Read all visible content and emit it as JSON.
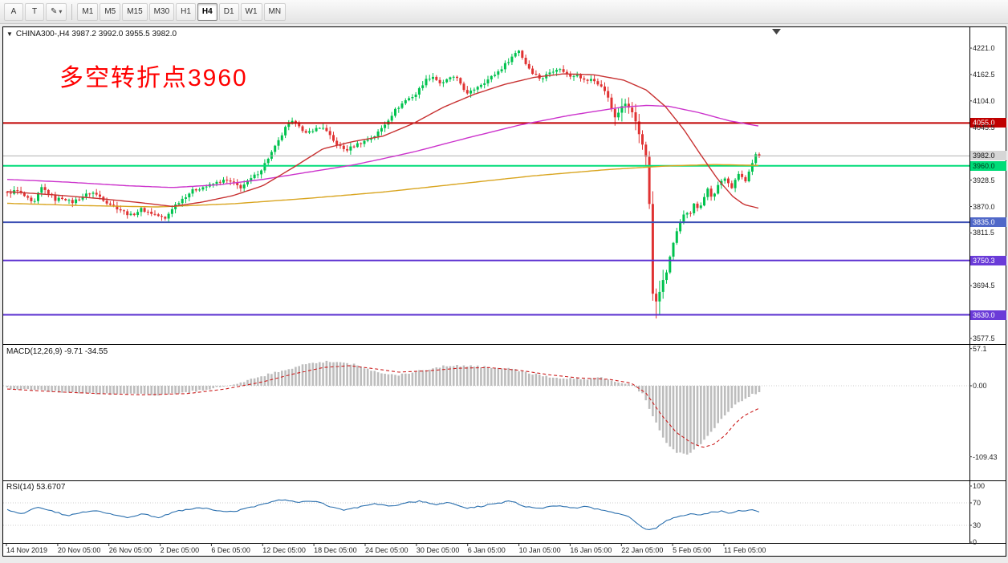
{
  "toolbar": {
    "tool_buttons": [
      {
        "label": "A",
        "name": "cursor-tool-button",
        "dropdown": false
      },
      {
        "label": "T",
        "name": "text-tool-button",
        "dropdown": false
      },
      {
        "label": "✎",
        "name": "drawing-tool-button",
        "dropdown": true
      }
    ],
    "timeframes": [
      {
        "label": "M1",
        "active": false
      },
      {
        "label": "M5",
        "active": false
      },
      {
        "label": "M15",
        "active": false
      },
      {
        "label": "M30",
        "active": false
      },
      {
        "label": "H1",
        "active": false
      },
      {
        "label": "H4",
        "active": true
      },
      {
        "label": "D1",
        "active": false
      },
      {
        "label": "W1",
        "active": false
      },
      {
        "label": "MN",
        "active": false
      }
    ]
  },
  "chart": {
    "symbol_info": "CHINA300-,H4 3987.2 3992.0 3955.5 3982.0",
    "annotation": {
      "text": "多空转折点3960",
      "color": "#ff0000"
    },
    "y_axis_labels": [
      "4221.0",
      "4162.5",
      "4104.0",
      "4045.5",
      "3928.5",
      "3870.0",
      "3811.5",
      "3694.5",
      "3577.5"
    ],
    "price_tags": [
      {
        "text": "4055.0",
        "price": 4055.0,
        "bg": "#c00000",
        "fg": "#ffffff",
        "line": "#c00000",
        "width": 2
      },
      {
        "text": "3982.0",
        "price": 3982.0,
        "bg": "#d6d6d6",
        "fg": "#111111",
        "line": "#b0b0b0",
        "width": 1
      },
      {
        "text": "3960.0",
        "price": 3960.0,
        "bg": "#00dc78",
        "fg": "#00341a",
        "line": "#00dc78",
        "width": 2
      },
      {
        "text": "3835.0",
        "price": 3835.0,
        "bg": "#5068c8",
        "fg": "#ffffff",
        "line": "#3c50b4",
        "width": 2
      },
      {
        "text": "3750.3",
        "price": 3750.3,
        "bg": "#6a3bd8",
        "fg": "#ffffff",
        "line": "#5a2fd0",
        "width": 2
      },
      {
        "text": "3630.0",
        "price": 3630.0,
        "bg": "#6a3bd8",
        "fg": "#ffffff",
        "line": "#5a2fd0",
        "width": 2
      }
    ]
  },
  "macd": {
    "label": "MACD(12,26,9) -9.71 -34.55",
    "axis_labels": [
      {
        "text": "57.1",
        "value": 57.1
      },
      {
        "text": "0.00",
        "value": 0
      },
      {
        "text": "-109.43",
        "value": -109.43
      }
    ]
  },
  "rsi": {
    "label": "RSI(14) 53.6707",
    "axis_labels": [
      {
        "text": "100",
        "value": 100
      },
      {
        "text": "70",
        "value": 70
      },
      {
        "text": "30",
        "value": 30
      },
      {
        "text": "0",
        "value": 0
      }
    ],
    "levels": [
      70,
      30
    ]
  },
  "time_axis": [
    "14 Nov 2019",
    "20 Nov 05:00",
    "26 Nov 05:00",
    "2 Dec 05:00",
    "6 Dec 05:00",
    "12 Dec 05:00",
    "18 Dec 05:00",
    "24 Dec 05:00",
    "30 Dec 05:00",
    "6 Jan 05:00",
    "10 Jan 05:00",
    "16 Jan 05:00",
    "22 Jan 05:00",
    "5 Feb 05:00",
    "11 Feb 05:00"
  ],
  "chart_data": {
    "type": "candlestick",
    "symbol": "CHINA300-",
    "timeframe": "H4",
    "current_bar": {
      "open": 3987.2,
      "high": 3992.0,
      "low": 3955.5,
      "close": 3982.0
    },
    "y_range": [
      3577.5,
      4221.0
    ],
    "macd_range": [
      -109.43,
      57.1
    ],
    "macd_current": {
      "main": -9.71,
      "signal": -34.55
    },
    "rsi_range": [
      0,
      100
    ],
    "rsi_current": 53.6707,
    "horizontal_levels": [
      4055.0,
      3982.0,
      3960.0,
      3835.0,
      3750.3,
      3630.0
    ],
    "num_bars": 220,
    "colors": {
      "up": "#00c24e",
      "down": "#e03232",
      "ma_fast": "#c83232",
      "ma_mid": "#cc33cc",
      "ma_slow": "#d9a520",
      "macd_hist": "#bdbdbd",
      "macd_signal": "#cc2020",
      "rsi": "#2a6fae"
    },
    "note": "t is normalized chart position 0-1 (14 Nov 2019 to mid Feb 2020); values estimated from pixels",
    "close_path": [
      [
        0.0,
        3898
      ],
      [
        0.012,
        3906
      ],
      [
        0.025,
        3890
      ],
      [
        0.035,
        3874
      ],
      [
        0.045,
        3912
      ],
      [
        0.058,
        3896
      ],
      [
        0.064,
        3885
      ],
      [
        0.075,
        3890
      ],
      [
        0.085,
        3878
      ],
      [
        0.1,
        3892
      ],
      [
        0.112,
        3902
      ],
      [
        0.125,
        3890
      ],
      [
        0.132,
        3880
      ],
      [
        0.145,
        3868
      ],
      [
        0.155,
        3858
      ],
      [
        0.165,
        3850
      ],
      [
        0.178,
        3864
      ],
      [
        0.19,
        3856
      ],
      [
        0.2,
        3850
      ],
      [
        0.21,
        3842
      ],
      [
        0.22,
        3868
      ],
      [
        0.232,
        3886
      ],
      [
        0.245,
        3904
      ],
      [
        0.258,
        3912
      ],
      [
        0.268,
        3916
      ],
      [
        0.28,
        3924
      ],
      [
        0.29,
        3928
      ],
      [
        0.3,
        3922
      ],
      [
        0.31,
        3912
      ],
      [
        0.322,
        3928
      ],
      [
        0.337,
        3950
      ],
      [
        0.348,
        3980
      ],
      [
        0.36,
        4012
      ],
      [
        0.37,
        4044
      ],
      [
        0.378,
        4056
      ],
      [
        0.386,
        4058
      ],
      [
        0.395,
        4028
      ],
      [
        0.406,
        4040
      ],
      [
        0.42,
        4046
      ],
      [
        0.435,
        4012
      ],
      [
        0.45,
        3994
      ],
      [
        0.465,
        4008
      ],
      [
        0.474,
        4014
      ],
      [
        0.49,
        4028
      ],
      [
        0.502,
        4052
      ],
      [
        0.515,
        4082
      ],
      [
        0.53,
        4106
      ],
      [
        0.543,
        4118
      ],
      [
        0.555,
        4148
      ],
      [
        0.565,
        4160
      ],
      [
        0.578,
        4140
      ],
      [
        0.59,
        4158
      ],
      [
        0.6,
        4150
      ],
      [
        0.612,
        4118
      ],
      [
        0.625,
        4136
      ],
      [
        0.64,
        4152
      ],
      [
        0.655,
        4172
      ],
      [
        0.668,
        4196
      ],
      [
        0.68,
        4218
      ],
      [
        0.688,
        4190
      ],
      [
        0.698,
        4168
      ],
      [
        0.71,
        4152
      ],
      [
        0.72,
        4166
      ],
      [
        0.73,
        4176
      ],
      [
        0.74,
        4170
      ],
      [
        0.748,
        4158
      ],
      [
        0.758,
        4164
      ],
      [
        0.768,
        4148
      ],
      [
        0.778,
        4152
      ],
      [
        0.79,
        4136
      ],
      [
        0.8,
        4110
      ],
      [
        0.808,
        4064
      ],
      [
        0.815,
        4086
      ],
      [
        0.822,
        4098
      ],
      [
        0.83,
        4088
      ],
      [
        0.838,
        4044
      ],
      [
        0.846,
        3998
      ],
      [
        0.852,
        3966
      ],
      [
        0.858,
        3680
      ],
      [
        0.864,
        3652
      ],
      [
        0.87,
        3700
      ],
      [
        0.876,
        3718
      ],
      [
        0.882,
        3762
      ],
      [
        0.888,
        3800
      ],
      [
        0.895,
        3836
      ],
      [
        0.902,
        3862
      ],
      [
        0.908,
        3850
      ],
      [
        0.914,
        3880
      ],
      [
        0.92,
        3858
      ],
      [
        0.926,
        3890
      ],
      [
        0.932,
        3908
      ],
      [
        0.938,
        3886
      ],
      [
        0.944,
        3914
      ],
      [
        0.95,
        3924
      ],
      [
        0.956,
        3932
      ],
      [
        0.962,
        3906
      ],
      [
        0.968,
        3932
      ],
      [
        0.974,
        3948
      ],
      [
        0.98,
        3920
      ],
      [
        0.985,
        3945
      ],
      [
        0.99,
        3962
      ],
      [
        0.995,
        3986
      ],
      [
        1.0,
        3982
      ]
    ],
    "ma_fast_path": [
      [
        0.0,
        3903
      ],
      [
        0.06,
        3896
      ],
      [
        0.12,
        3888
      ],
      [
        0.18,
        3878
      ],
      [
        0.22,
        3870
      ],
      [
        0.26,
        3880
      ],
      [
        0.3,
        3894
      ],
      [
        0.34,
        3916
      ],
      [
        0.38,
        3956
      ],
      [
        0.42,
        3998
      ],
      [
        0.46,
        4014
      ],
      [
        0.5,
        4026
      ],
      [
        0.54,
        4054
      ],
      [
        0.58,
        4090
      ],
      [
        0.62,
        4118
      ],
      [
        0.66,
        4140
      ],
      [
        0.7,
        4156
      ],
      [
        0.74,
        4164
      ],
      [
        0.78,
        4162
      ],
      [
        0.82,
        4150
      ],
      [
        0.85,
        4128
      ],
      [
        0.875,
        4092
      ],
      [
        0.9,
        4040
      ],
      [
        0.92,
        3990
      ],
      [
        0.945,
        3930
      ],
      [
        0.965,
        3892
      ],
      [
        0.98,
        3874
      ],
      [
        1.0,
        3866
      ]
    ],
    "ma_mid_path": [
      [
        0.0,
        3930
      ],
      [
        0.08,
        3924
      ],
      [
        0.16,
        3916
      ],
      [
        0.22,
        3912
      ],
      [
        0.28,
        3918
      ],
      [
        0.34,
        3930
      ],
      [
        0.4,
        3946
      ],
      [
        0.46,
        3962
      ],
      [
        0.5,
        3976
      ],
      [
        0.543,
        3992
      ],
      [
        0.612,
        4022
      ],
      [
        0.68,
        4050
      ],
      [
        0.748,
        4072
      ],
      [
        0.817,
        4090
      ],
      [
        0.85,
        4094
      ],
      [
        0.88,
        4092
      ],
      [
        0.92,
        4078
      ],
      [
        0.96,
        4060
      ],
      [
        1.0,
        4048
      ]
    ],
    "ma_slow_path": [
      [
        0.0,
        3877
      ],
      [
        0.1,
        3872
      ],
      [
        0.2,
        3869
      ],
      [
        0.3,
        3876
      ],
      [
        0.4,
        3888
      ],
      [
        0.5,
        3902
      ],
      [
        0.6,
        3920
      ],
      [
        0.7,
        3938
      ],
      [
        0.8,
        3952
      ],
      [
        0.88,
        3960
      ],
      [
        0.94,
        3963
      ],
      [
        1.0,
        3961
      ]
    ],
    "macd_hist_path": [
      [
        0.0,
        -4
      ],
      [
        0.05,
        -8
      ],
      [
        0.1,
        -11
      ],
      [
        0.15,
        -13
      ],
      [
        0.2,
        -14
      ],
      [
        0.24,
        -10
      ],
      [
        0.28,
        -3
      ],
      [
        0.32,
        8
      ],
      [
        0.36,
        22
      ],
      [
        0.4,
        34
      ],
      [
        0.43,
        38
      ],
      [
        0.46,
        33
      ],
      [
        0.49,
        22
      ],
      [
        0.52,
        16
      ],
      [
        0.55,
        24
      ],
      [
        0.58,
        30
      ],
      [
        0.61,
        31
      ],
      [
        0.64,
        29
      ],
      [
        0.67,
        26
      ],
      [
        0.7,
        18
      ],
      [
        0.73,
        12
      ],
      [
        0.76,
        10
      ],
      [
        0.79,
        12
      ],
      [
        0.81,
        6
      ],
      [
        0.83,
        2
      ],
      [
        0.845,
        -12
      ],
      [
        0.86,
        -50
      ],
      [
        0.875,
        -85
      ],
      [
        0.89,
        -102
      ],
      [
        0.905,
        -105
      ],
      [
        0.92,
        -92
      ],
      [
        0.935,
        -72
      ],
      [
        0.95,
        -52
      ],
      [
        0.962,
        -35
      ],
      [
        0.975,
        -24
      ],
      [
        0.99,
        -14
      ],
      [
        1.0,
        -9.71
      ]
    ],
    "macd_signal_path": [
      [
        0.0,
        -5
      ],
      [
        0.06,
        -9
      ],
      [
        0.12,
        -12
      ],
      [
        0.18,
        -14
      ],
      [
        0.24,
        -12
      ],
      [
        0.29,
        -5
      ],
      [
        0.34,
        6
      ],
      [
        0.38,
        18
      ],
      [
        0.42,
        28
      ],
      [
        0.455,
        31
      ],
      [
        0.49,
        26
      ],
      [
        0.52,
        21
      ],
      [
        0.56,
        23
      ],
      [
        0.6,
        27
      ],
      [
        0.64,
        28
      ],
      [
        0.68,
        24
      ],
      [
        0.72,
        17
      ],
      [
        0.76,
        12
      ],
      [
        0.8,
        10
      ],
      [
        0.83,
        4
      ],
      [
        0.85,
        -12
      ],
      [
        0.87,
        -45
      ],
      [
        0.89,
        -72
      ],
      [
        0.91,
        -88
      ],
      [
        0.925,
        -95
      ],
      [
        0.94,
        -90
      ],
      [
        0.955,
        -76
      ],
      [
        0.968,
        -58
      ],
      [
        0.98,
        -46
      ],
      [
        1.0,
        -34.55
      ]
    ],
    "rsi_path": [
      [
        0.0,
        58
      ],
      [
        0.02,
        50
      ],
      [
        0.04,
        62
      ],
      [
        0.06,
        56
      ],
      [
        0.08,
        47
      ],
      [
        0.1,
        53
      ],
      [
        0.12,
        56
      ],
      [
        0.14,
        49
      ],
      [
        0.16,
        44
      ],
      [
        0.18,
        51
      ],
      [
        0.2,
        43
      ],
      [
        0.22,
        53
      ],
      [
        0.24,
        59
      ],
      [
        0.26,
        61
      ],
      [
        0.28,
        57
      ],
      [
        0.3,
        54
      ],
      [
        0.33,
        64
      ],
      [
        0.35,
        72
      ],
      [
        0.37,
        76
      ],
      [
        0.39,
        71
      ],
      [
        0.41,
        74
      ],
      [
        0.43,
        63
      ],
      [
        0.45,
        57
      ],
      [
        0.47,
        63
      ],
      [
        0.49,
        68
      ],
      [
        0.51,
        64
      ],
      [
        0.53,
        70
      ],
      [
        0.55,
        73
      ],
      [
        0.57,
        67
      ],
      [
        0.59,
        71
      ],
      [
        0.61,
        61
      ],
      [
        0.63,
        64
      ],
      [
        0.65,
        69
      ],
      [
        0.67,
        73
      ],
      [
        0.69,
        63
      ],
      [
        0.71,
        60
      ],
      [
        0.73,
        65
      ],
      [
        0.75,
        61
      ],
      [
        0.77,
        63
      ],
      [
        0.79,
        58
      ],
      [
        0.81,
        52
      ],
      [
        0.825,
        48
      ],
      [
        0.84,
        30
      ],
      [
        0.85,
        22
      ],
      [
        0.862,
        24
      ],
      [
        0.875,
        38
      ],
      [
        0.89,
        45
      ],
      [
        0.905,
        50
      ],
      [
        0.92,
        48
      ],
      [
        0.935,
        53
      ],
      [
        0.95,
        55
      ],
      [
        0.96,
        52
      ],
      [
        0.975,
        56
      ],
      [
        0.99,
        57
      ],
      [
        1.0,
        53.67
      ]
    ]
  }
}
